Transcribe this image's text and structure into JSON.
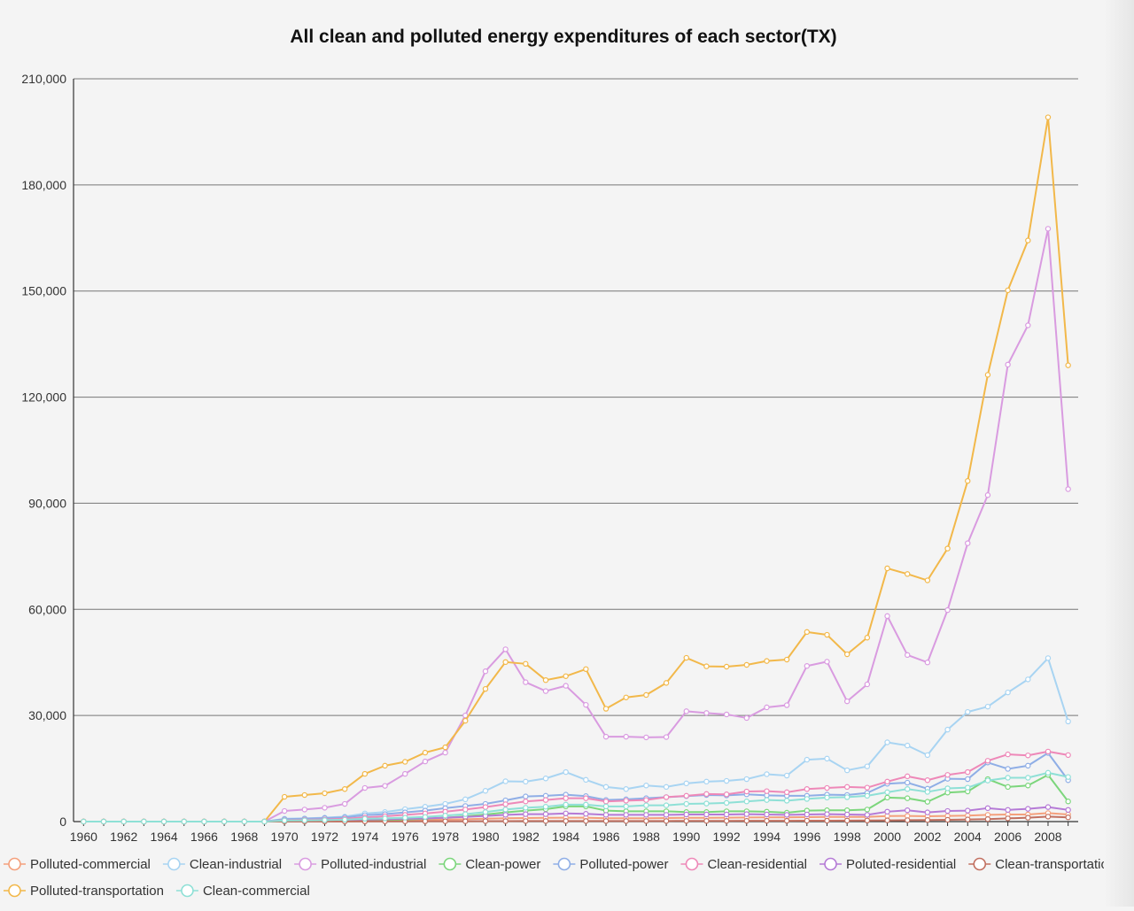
{
  "chart_data": {
    "type": "line",
    "title": "All clean and polluted energy expenditures of each sector(TX)",
    "xlabel": "",
    "ylabel": "",
    "ylim": [
      0,
      210000
    ],
    "y_ticks": [
      "0",
      "30,000",
      "60,000",
      "90,000",
      "120,000",
      "150,000",
      "180,000",
      "210,000"
    ],
    "y_tick_values": [
      0,
      30000,
      60000,
      90000,
      120000,
      150000,
      180000,
      210000
    ],
    "x": [
      1960,
      1961,
      1962,
      1963,
      1964,
      1965,
      1966,
      1967,
      1968,
      1969,
      1970,
      1971,
      1972,
      1973,
      1974,
      1975,
      1976,
      1977,
      1978,
      1979,
      1980,
      1981,
      1982,
      1983,
      1984,
      1985,
      1986,
      1987,
      1988,
      1989,
      1990,
      1991,
      1992,
      1993,
      1994,
      1995,
      1996,
      1997,
      1998,
      1999,
      2000,
      2001,
      2002,
      2003,
      2004,
      2005,
      2006,
      2007,
      2008,
      2009
    ],
    "x_tick_labels": [
      "1960",
      "1962",
      "1964",
      "1966",
      "1968",
      "1970",
      "1972",
      "1974",
      "1976",
      "1978",
      "1980",
      "1982",
      "1984",
      "1986",
      "1988",
      "1990",
      "1992",
      "1994",
      "1996",
      "1998",
      "2000",
      "2002",
      "2004",
      "2006",
      "2008"
    ],
    "grid": true,
    "legend_position": "bottom",
    "series": [
      {
        "name": "Polluted-commercial",
        "color": "#f4a07c",
        "values": [
          0,
          0,
          0,
          0,
          0,
          0,
          0,
          0,
          0,
          0,
          150,
          170,
          200,
          230,
          300,
          360,
          420,
          480,
          560,
          650,
          800,
          950,
          1000,
          1050,
          1100,
          1100,
          950,
          950,
          950,
          1000,
          1050,
          1050,
          1100,
          1150,
          1200,
          1200,
          1250,
          1300,
          1300,
          1300,
          1550,
          1600,
          1500,
          1600,
          1700,
          1900,
          2000,
          2000,
          2400,
          2000
        ]
      },
      {
        "name": "Clean-industrial",
        "color": "#a8d4f2",
        "values": [
          0,
          0,
          0,
          0,
          0,
          0,
          0,
          0,
          0,
          0,
          800,
          900,
          1100,
          1400,
          2300,
          2700,
          3500,
          4200,
          5000,
          6300,
          8700,
          11400,
          11300,
          12200,
          14000,
          11800,
          9800,
          9200,
          10200,
          9800,
          10800,
          11300,
          11500,
          12000,
          13400,
          13000,
          17500,
          17800,
          14500,
          15600,
          22400,
          21500,
          18800,
          26000,
          31000,
          32500,
          36500,
          40200,
          46200,
          28300
        ]
      },
      {
        "name": "Polluted-industrial",
        "color": "#d99be0",
        "values": [
          0,
          0,
          0,
          0,
          0,
          0,
          0,
          0,
          0,
          0,
          3000,
          3400,
          3900,
          5000,
          9500,
          10100,
          13500,
          17000,
          19500,
          30000,
          42500,
          48700,
          39400,
          36900,
          38400,
          33000,
          24000,
          24000,
          23800,
          23900,
          31200,
          30700,
          30300,
          29300,
          32300,
          32900,
          44000,
          45200,
          34000,
          38800,
          58100,
          47100,
          45000,
          59800,
          78700,
          92300,
          129200,
          140300,
          167600,
          94000
        ]
      },
      {
        "name": "Clean-power",
        "color": "#7cd67c",
        "values": [
          0,
          0,
          0,
          0,
          0,
          0,
          0,
          0,
          0,
          0,
          100,
          120,
          150,
          200,
          300,
          400,
          600,
          800,
          1100,
          1500,
          2000,
          2600,
          3100,
          3500,
          4300,
          4300,
          3100,
          2900,
          2900,
          2900,
          2700,
          2700,
          2900,
          2900,
          2800,
          2500,
          3100,
          3200,
          3200,
          3400,
          6800,
          6600,
          5600,
          8200,
          8500,
          12000,
          9800,
          10200,
          13200,
          5700
        ]
      },
      {
        "name": "Polluted-power",
        "color": "#8faee6",
        "values": [
          0,
          0,
          0,
          0,
          0,
          0,
          0,
          0,
          0,
          0,
          700,
          800,
          1000,
          1200,
          1800,
          2100,
          2600,
          3100,
          3800,
          4400,
          5000,
          6000,
          7100,
          7300,
          7600,
          7200,
          6100,
          6300,
          6600,
          6900,
          7200,
          7500,
          7400,
          7700,
          7400,
          7300,
          7300,
          7600,
          7500,
          8100,
          10700,
          11000,
          9300,
          12100,
          12000,
          16700,
          14900,
          15800,
          19400,
          11700
        ]
      },
      {
        "name": "Clean-residential",
        "color": "#ee88b8",
        "values": [
          0,
          0,
          0,
          0,
          0,
          0,
          0,
          0,
          0,
          0,
          400,
          500,
          600,
          800,
          1200,
          1500,
          1900,
          2300,
          2800,
          3400,
          4100,
          4900,
          5700,
          6100,
          6600,
          6600,
          5700,
          5900,
          6100,
          6900,
          7300,
          7800,
          7700,
          8500,
          8600,
          8300,
          9200,
          9500,
          9800,
          9600,
          11300,
          12800,
          11700,
          13200,
          14000,
          17200,
          19000,
          18700,
          19800,
          18800
        ]
      },
      {
        "name": "Poluted-residential",
        "color": "#b57ad6",
        "values": [
          0,
          0,
          0,
          0,
          0,
          0,
          0,
          0,
          0,
          0,
          300,
          350,
          400,
          450,
          600,
          700,
          800,
          900,
          1100,
          1300,
          1600,
          1900,
          2100,
          2100,
          2300,
          2200,
          1900,
          1900,
          1900,
          1900,
          2000,
          2000,
          2000,
          2100,
          2000,
          1900,
          2000,
          2100,
          2000,
          1900,
          2800,
          3200,
          2600,
          3000,
          3100,
          3800,
          3300,
          3600,
          4100,
          3300
        ]
      },
      {
        "name": "Clean-transportation",
        "color": "#c27060",
        "values": [
          0,
          0,
          0,
          0,
          0,
          0,
          0,
          0,
          0,
          0,
          20,
          20,
          30,
          40,
          50,
          60,
          70,
          80,
          90,
          100,
          120,
          140,
          150,
          160,
          170,
          170,
          160,
          160,
          160,
          170,
          180,
          190,
          200,
          210,
          220,
          230,
          240,
          260,
          280,
          300,
          350,
          400,
          450,
          500,
          600,
          700,
          900,
          1100,
          1400,
          1200
        ]
      },
      {
        "name": "Polluted-transportation",
        "color": "#f2b84a",
        "values": [
          0,
          0,
          0,
          0,
          0,
          0,
          0,
          0,
          0,
          0,
          7000,
          7500,
          8000,
          9200,
          13500,
          15800,
          16900,
          19500,
          21000,
          28500,
          37500,
          45100,
          44600,
          40000,
          41100,
          43100,
          31900,
          35100,
          35800,
          39200,
          46300,
          43900,
          43800,
          44300,
          45400,
          45800,
          53600,
          52800,
          47300,
          52000,
          71600,
          70000,
          68200,
          77200,
          96300,
          126300,
          150200,
          164300,
          199100,
          129000
        ]
      },
      {
        "name": "Clean-commercial",
        "color": "#8ee0d6",
        "values": [
          0,
          0,
          0,
          0,
          0,
          0,
          0,
          0,
          0,
          0,
          300,
          350,
          420,
          520,
          800,
          900,
          1100,
          1300,
          1700,
          2100,
          2700,
          3400,
          3900,
          4200,
          4800,
          4800,
          4300,
          4300,
          4600,
          4600,
          5000,
          5100,
          5300,
          5700,
          6100,
          5900,
          6400,
          6800,
          6900,
          7300,
          8300,
          9200,
          8400,
          9400,
          9600,
          11600,
          12400,
          12400,
          13800,
          12600
        ]
      }
    ]
  }
}
